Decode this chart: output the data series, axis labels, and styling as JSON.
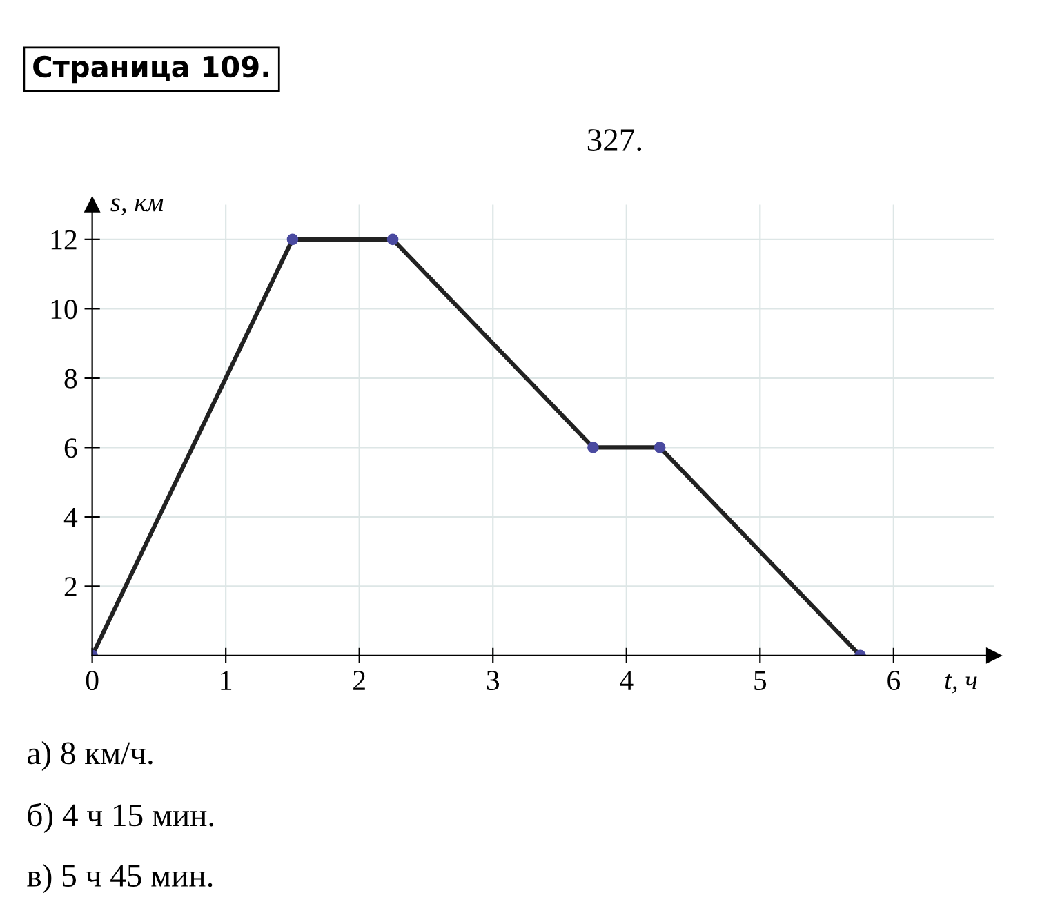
{
  "chart_data": {
    "type": "line",
    "title": "Страница 109.",
    "subtitle": "327.",
    "xlabel": "t, ч",
    "ylabel": "s, км",
    "x": [
      0,
      1.5,
      2.25,
      3.75,
      4.25,
      5.75
    ],
    "series": [
      {
        "color": "#222222",
        "values": [
          0,
          12,
          12,
          6,
          6,
          0
        ]
      }
    ],
    "xlim": [
      0,
      6.75
    ],
    "ylim": [
      0,
      13
    ],
    "xticks": [
      0,
      1,
      2,
      3,
      4,
      5,
      6
    ],
    "yticks": [
      2,
      4,
      6,
      8,
      10,
      12
    ],
    "grid": true,
    "marker": "circle",
    "line_style": "solid",
    "annotations": [
      "а) 8 км/ч.",
      "б) 4 ч 15 мин.",
      "в) 5 ч 45 мин."
    ]
  }
}
